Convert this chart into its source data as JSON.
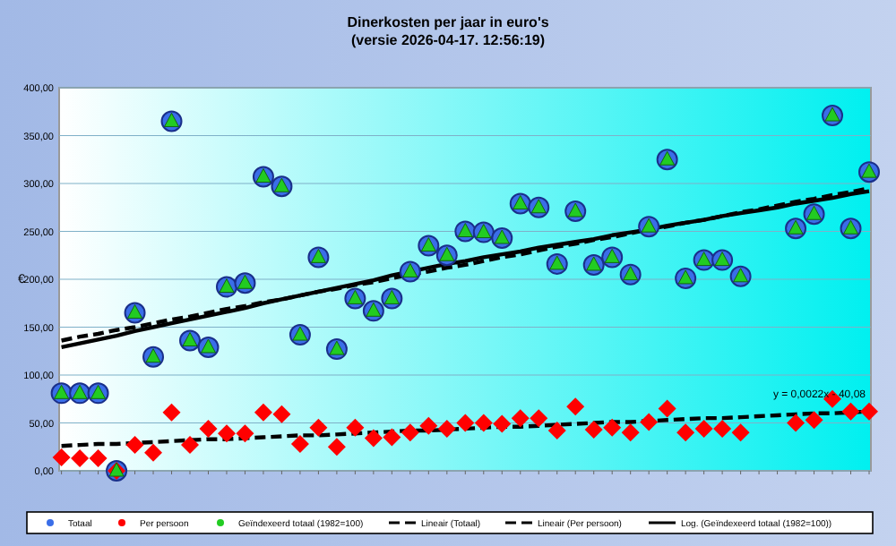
{
  "chart_data": {
    "type": "scatter",
    "title": "Dinerkosten per jaar in euro's",
    "subtitle": "(versie 2026-04-17. 12:56:19)",
    "ylabel": "€",
    "categories": [
      null,
      null,
      null,
      null,
      null,
      null,
      null,
      null,
      null,
      null,
      null,
      null,
      null,
      null,
      null,
      null,
      null,
      null,
      null,
      null,
      null,
      null,
      null,
      null,
      null,
      null,
      null,
      null,
      null,
      null,
      null,
      null,
      null,
      null,
      null,
      null,
      null,
      null,
      null,
      null,
      null,
      null,
      null,
      null,
      null
    ],
    "ylim": [
      0,
      400
    ],
    "yticks": [
      {
        "value": 0,
        "label": "0,00"
      },
      {
        "value": 50,
        "label": "50,00"
      },
      {
        "value": 100,
        "label": "100,00"
      },
      {
        "value": 150,
        "label": "150,00"
      },
      {
        "value": 200,
        "label": "200,00"
      },
      {
        "value": 250,
        "label": "250,00"
      },
      {
        "value": 300,
        "label": "300,00"
      },
      {
        "value": 350,
        "label": "350,00"
      },
      {
        "value": 400,
        "label": "400,00"
      }
    ],
    "grid": "y",
    "legend": "bottom",
    "series": [
      {
        "name": "Totaal",
        "color": "#3a6ee8",
        "marker": "circle",
        "values": [
          81,
          81,
          81,
          0,
          165,
          119,
          365,
          136,
          129,
          192,
          196,
          307,
          297,
          142,
          223,
          127,
          180,
          167,
          180,
          208,
          235,
          225,
          250,
          249,
          243,
          279,
          275,
          216,
          271,
          215,
          223,
          205,
          255,
          325,
          201,
          220,
          220,
          203,
          null,
          null,
          253,
          268,
          371,
          253,
          312
        ]
      },
      {
        "name": "Per persoon",
        "color": "#ff0000",
        "marker": "diamond",
        "values": [
          14,
          13,
          13,
          0,
          27,
          19,
          61,
          27,
          44,
          39,
          39,
          61,
          59,
          28,
          45,
          25,
          45,
          34,
          35,
          40,
          47,
          44,
          50,
          50,
          49,
          55,
          55,
          42,
          67,
          43,
          45,
          40,
          51,
          65,
          40,
          44,
          44,
          40,
          null,
          null,
          50,
          53,
          75,
          62,
          62
        ]
      },
      {
        "name": "Geïndexeerd totaal (1982=100)",
        "color": "#22cc22",
        "marker": "triangle",
        "values": [
          81,
          81,
          81,
          0,
          165,
          119,
          365,
          136,
          129,
          192,
          196,
          307,
          297,
          142,
          223,
          127,
          180,
          167,
          180,
          208,
          235,
          225,
          250,
          249,
          243,
          279,
          275,
          216,
          271,
          215,
          223,
          205,
          255,
          325,
          201,
          220,
          220,
          203,
          null,
          null,
          253,
          268,
          371,
          253,
          312
        ]
      },
      {
        "name": "Lineair (Totaal)",
        "type": "line",
        "color": "#000000",
        "line_style": "dashed",
        "values": [
          136,
          140,
          143,
          147,
          150,
          154,
          158,
          161,
          165,
          169,
          172,
          176,
          179,
          183,
          187,
          190,
          194,
          197,
          201,
          205,
          208,
          212,
          215,
          219,
          223,
          226,
          230,
          234,
          237,
          241,
          244,
          248,
          252,
          255,
          259,
          262,
          266,
          270,
          273,
          277,
          281,
          284,
          288,
          291,
          295
        ]
      },
      {
        "name": "Lineair (Per persoon)",
        "type": "line",
        "color": "#000000",
        "line_style": "dashed",
        "values": [
          26,
          27,
          28,
          28,
          29,
          30,
          31,
          32,
          33,
          33,
          34,
          35,
          36,
          37,
          37,
          38,
          39,
          40,
          41,
          42,
          42,
          43,
          44,
          45,
          46,
          46,
          47,
          48,
          49,
          50,
          51,
          51,
          52,
          53,
          54,
          55,
          55,
          56,
          57,
          58,
          59,
          60,
          60,
          61,
          62
        ]
      },
      {
        "name": "Log. (Geïndexeerd totaal (1982=100))",
        "type": "line",
        "color": "#000000",
        "line_style": "solid",
        "values": [
          129,
          133,
          137,
          141,
          146,
          150,
          154,
          158,
          162,
          166,
          170,
          175,
          179,
          183,
          187,
          191,
          195,
          199,
          204,
          208,
          212,
          216,
          219,
          223,
          226,
          229,
          233,
          236,
          239,
          242,
          246,
          249,
          252,
          256,
          259,
          262,
          266,
          269,
          272,
          275,
          279,
          282,
          285,
          289,
          292
        ]
      }
    ],
    "annotations": [
      {
        "text": "y = 0,0022x - 40,08",
        "y": 62
      }
    ]
  }
}
